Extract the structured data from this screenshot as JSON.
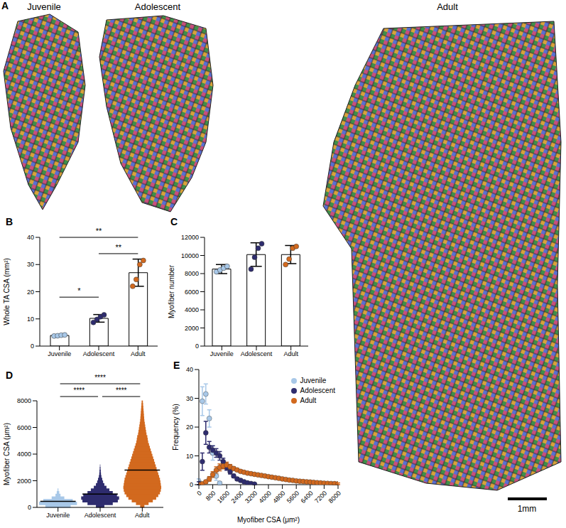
{
  "panel_a": {
    "letter": "A",
    "labels": [
      "Juvenile",
      "Adolescent",
      "Adult"
    ],
    "scale_bar": "1mm"
  },
  "chart_data": [
    {
      "panel": "B",
      "type": "bar",
      "y_label": "Whole TA CSA (mm²)",
      "categories": [
        "Juvenile",
        "Adolescent",
        "Adult"
      ],
      "values": [
        3.9,
        10.2,
        27
      ],
      "error": [
        0.3,
        1.4,
        5
      ],
      "points": [
        [
          3.7,
          3.8,
          4.0,
          4.1
        ],
        [
          8.7,
          9.8,
          10.8,
          11.5
        ],
        [
          22,
          24.5,
          30,
          31.5
        ]
      ],
      "colors": [
        "#a8c8e8",
        "#2e2c6e",
        "#d2691e"
      ],
      "ylim": [
        0,
        40
      ],
      "yticks": [
        0,
        10,
        20,
        30,
        40
      ],
      "comparisons": [
        {
          "pair": [
            "Juvenile",
            "Adolescent"
          ],
          "label": "*"
        },
        {
          "pair": [
            "Adolescent",
            "Adult"
          ],
          "label": "**"
        },
        {
          "pair": [
            "Juvenile",
            "Adult"
          ],
          "label": "**"
        }
      ]
    },
    {
      "panel": "C",
      "type": "bar",
      "y_label": "Myofiber number",
      "categories": [
        "Juvenile",
        "Adolescent",
        "Adult"
      ],
      "values": [
        8500,
        10100,
        10100
      ],
      "error": [
        500,
        1300,
        1000
      ],
      "points": [
        [
          8200,
          8400,
          8600,
          8800
        ],
        [
          8500,
          9800,
          10800,
          11300
        ],
        [
          9000,
          9600,
          10800,
          11000
        ]
      ],
      "colors": [
        "#a8c8e8",
        "#2e2c6e",
        "#d2691e"
      ],
      "ylim": [
        0,
        12000
      ],
      "yticks": [
        0,
        2000,
        4000,
        6000,
        8000,
        10000,
        12000
      ],
      "comparisons": []
    },
    {
      "panel": "D",
      "type": "violin",
      "y_label": "Myofiber CSA (μm²)",
      "categories": [
        "Juvenile",
        "Adolescent",
        "Adult"
      ],
      "colors": [
        "#a8c8e8",
        "#2e2c6e",
        "#d2691e"
      ],
      "profiles": [
        {
          "y": [
            100,
            300,
            500,
            700,
            900,
            1100,
            1300
          ],
          "width": [
            0.3,
            0.45,
            0.35,
            0.15,
            0.06,
            0.03,
            0.01
          ]
        },
        {
          "y": [
            100,
            300,
            500,
            700,
            900,
            1100,
            1300,
            1500,
            1700,
            1900,
            2100,
            2300,
            2500,
            2700,
            2900,
            3100
          ],
          "width": [
            0.1,
            0.3,
            0.42,
            0.45,
            0.4,
            0.3,
            0.22,
            0.15,
            0.1,
            0.07,
            0.05,
            0.03,
            0.02,
            0.015,
            0.01,
            0.005
          ]
        },
        {
          "y": [
            100,
            300,
            500,
            700,
            900,
            1100,
            1300,
            1500,
            1700,
            1900,
            2100,
            2300,
            2500,
            2700,
            2900,
            3100,
            3300,
            3500,
            3700,
            3900,
            4100,
            4300,
            4500,
            4700,
            4900,
            5100,
            5300,
            5500,
            5700,
            5900,
            6100,
            6300,
            6500,
            6700,
            6900,
            7100,
            7300,
            7500,
            7700,
            7900
          ],
          "width": [
            0.05,
            0.15,
            0.25,
            0.33,
            0.38,
            0.42,
            0.44,
            0.45,
            0.44,
            0.43,
            0.42,
            0.4,
            0.38,
            0.36,
            0.34,
            0.32,
            0.3,
            0.28,
            0.26,
            0.24,
            0.22,
            0.2,
            0.18,
            0.16,
            0.14,
            0.13,
            0.12,
            0.1,
            0.09,
            0.08,
            0.07,
            0.06,
            0.05,
            0.045,
            0.04,
            0.035,
            0.03,
            0.025,
            0.02,
            0.015
          ]
        }
      ],
      "means": [
        450,
        1000,
        2800
      ],
      "ylim": [
        0,
        8000
      ],
      "yticks": [
        0,
        2000,
        4000,
        6000,
        8000
      ],
      "comparisons": [
        {
          "pair": [
            "Juvenile",
            "Adolescent"
          ],
          "label": "****"
        },
        {
          "pair": [
            "Adolescent",
            "Adult"
          ],
          "label": "****"
        },
        {
          "pair": [
            "Juvenile",
            "Adult"
          ],
          "label": "****"
        }
      ]
    },
    {
      "panel": "E",
      "type": "scatter",
      "x_label": "Myofiber CSA (μm²)",
      "y_label": "Frequency (%)",
      "legend": "top-right",
      "marker": "circle",
      "xlim": [
        0,
        8000
      ],
      "xticks": [
        0,
        800,
        1600,
        2400,
        3200,
        4000,
        4800,
        5600,
        6400,
        7200,
        8000
      ],
      "ylim": [
        0,
        40
      ],
      "yticks": [
        0,
        10,
        20,
        30,
        40
      ],
      "series": [
        {
          "name": "Juvenile",
          "color": "#a8c8e8",
          "x": [
            0,
            200,
            400,
            600,
            800,
            1000,
            1200
          ],
          "values": [
            1,
            29,
            31.5,
            23,
            11,
            3,
            0.5
          ],
          "error": [
            1,
            5,
            3.5,
            3,
            2.5,
            1.5,
            0.5
          ]
        },
        {
          "name": "Adolescent",
          "color": "#2e2c6e",
          "x": [
            0,
            200,
            400,
            600,
            800,
            1000,
            1200,
            1400,
            1600,
            1800,
            2000,
            2200,
            2400,
            2600,
            2800,
            3000,
            3200
          ],
          "values": [
            0.5,
            8,
            18,
            13,
            12,
            11,
            10,
            8,
            6,
            4.5,
            3,
            2,
            1.5,
            1,
            0.6,
            0.4,
            0.2
          ],
          "error": [
            0.5,
            3,
            4,
            2,
            1.5,
            1.5,
            1.5,
            1.2,
            1,
            0.8,
            0.6,
            0.5,
            0.4,
            0.3,
            0.3,
            0.2,
            0.2
          ]
        },
        {
          "name": "Adult",
          "color": "#d2691e",
          "x": [
            0,
            200,
            400,
            600,
            800,
            1000,
            1200,
            1400,
            1600,
            1800,
            2000,
            2200,
            2400,
            2600,
            2800,
            3000,
            3200,
            3400,
            3600,
            3800,
            4000,
            4200,
            4400,
            4600,
            4800,
            5000,
            5200,
            5400,
            5600,
            5800,
            6000,
            6200,
            6400,
            6600,
            6800,
            7000,
            7200,
            7400,
            7600,
            7800,
            8000
          ],
          "values": [
            0,
            0.3,
            1,
            2,
            3.5,
            5,
            6,
            6.5,
            6.8,
            6.2,
            5.6,
            5.1,
            4.6,
            4.3,
            4,
            3.8,
            3.6,
            3.4,
            3.2,
            3,
            2.8,
            2.6,
            2.4,
            2.2,
            2,
            1.8,
            1.6,
            1.5,
            1.3,
            1.2,
            1.1,
            1,
            0.9,
            0.8,
            0.7,
            0.6,
            0.5,
            0.45,
            0.4,
            0.35,
            0.3
          ],
          "error": [
            0,
            0.2,
            0.5,
            0.8,
            1,
            1.2,
            1.2,
            1,
            1,
            0.8,
            0.6,
            0.5,
            0.5,
            0.4,
            0.4,
            0.3,
            0.3,
            0.3,
            0.3,
            0.3,
            0.3,
            0.3,
            0.3,
            0.3,
            0.3,
            0.3,
            0.3,
            0.3,
            0.3,
            0.3,
            0.3,
            0.3,
            0.3,
            0.3,
            0.3,
            0.3,
            0.3,
            0.3,
            0.3,
            0.3,
            0.3
          ]
        }
      ]
    }
  ]
}
